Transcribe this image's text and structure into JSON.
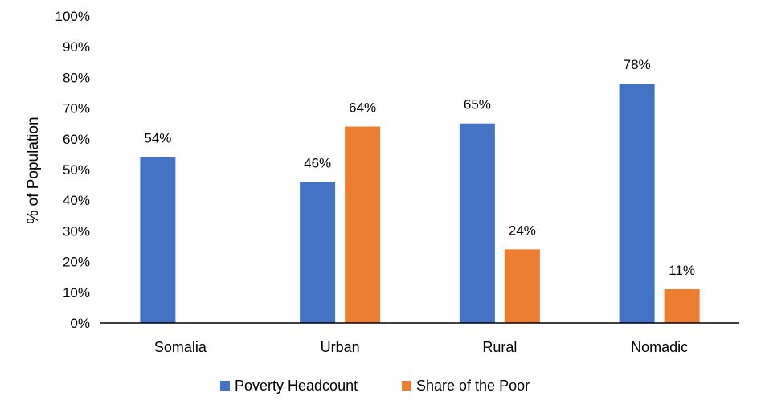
{
  "chart_data": {
    "type": "bar",
    "categories": [
      "Somalia",
      "Urban",
      "Rural",
      "Nomadic"
    ],
    "series": [
      {
        "name": "Poverty Headcount",
        "values": [
          54,
          46,
          65,
          78
        ],
        "labels": [
          "54%",
          "46%",
          "65%",
          "78%"
        ],
        "color": "#4472C4"
      },
      {
        "name": "Share of the Poor",
        "values": [
          null,
          64,
          24,
          11
        ],
        "labels": [
          "",
          "64%",
          "24%",
          "11%"
        ],
        "color": "#ED7D31"
      }
    ],
    "ylabel": "% of Population",
    "xlabel": "",
    "ylim": [
      0,
      100
    ],
    "yticks": [
      "0%",
      "10%",
      "20%",
      "30%",
      "40%",
      "50%",
      "60%",
      "70%",
      "80%",
      "90%",
      "100%"
    ],
    "grid": false,
    "legend_position": "bottom"
  }
}
